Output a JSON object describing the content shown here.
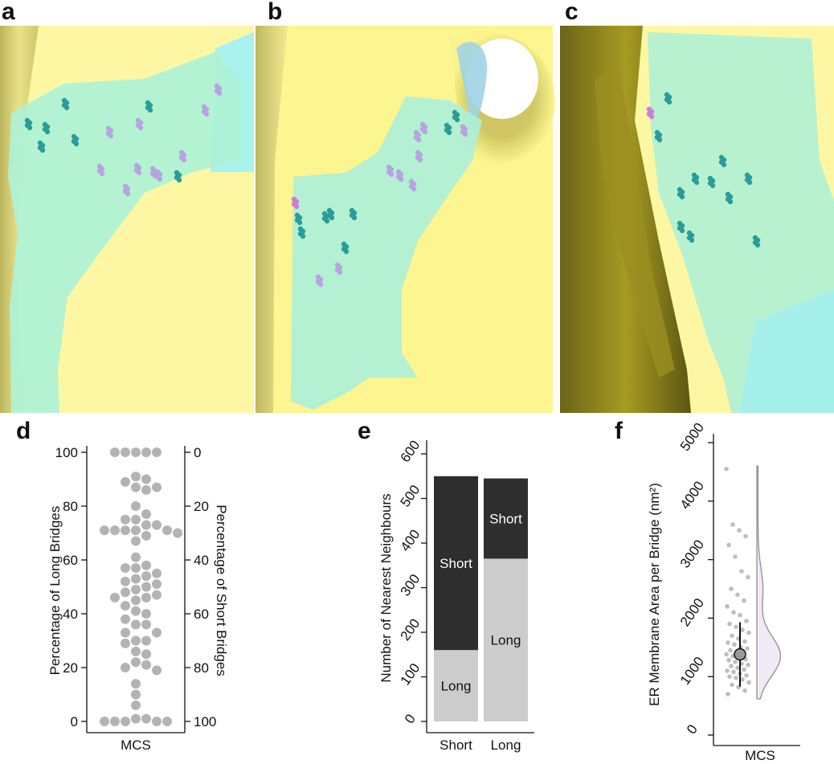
{
  "panels": {
    "a": "a",
    "b": "b",
    "c": "c",
    "d": "d",
    "e": "e",
    "f": "f"
  },
  "colors": {
    "yellow_membrane": "#fbf58e",
    "cyan_er": "#a6f0e6",
    "teal_bridge": "#2a9c9a",
    "lavender_bridge": "#b6a4e0",
    "dark_gray": "#2e2e2e",
    "light_gray": "#cccccc",
    "dot_gray": "#b3b3b3",
    "violin_fill": "#f1eaf6"
  },
  "chart_data": [
    {
      "type": "scatter",
      "panel": "d",
      "xlabel": "MCS",
      "ylabel": "Percentage of Long Bridges",
      "ylabel_right": "Percentage of Short Bridges",
      "ylim": [
        0,
        100
      ],
      "yticks": [
        "0",
        "20",
        "40",
        "60",
        "80",
        "100"
      ],
      "yticks_right": [
        "100",
        "80",
        "60",
        "40",
        "20",
        "0"
      ],
      "values": [
        100,
        100,
        100,
        100,
        100,
        91,
        90,
        89,
        87,
        87,
        86,
        80,
        77,
        75,
        75,
        73,
        73,
        71,
        71,
        71,
        71,
        71,
        70,
        69,
        67,
        61,
        58,
        57,
        57,
        55,
        54,
        53,
        52,
        51,
        50,
        49,
        48,
        47,
        46,
        46,
        45,
        43,
        41,
        40,
        38,
        36,
        36,
        33,
        33,
        30,
        30,
        29,
        26,
        25,
        22,
        21,
        20,
        19,
        14,
        10,
        6,
        1,
        1,
        0,
        0,
        0,
        0,
        0
      ]
    },
    {
      "type": "bar",
      "panel": "e",
      "stacked": true,
      "categories": [
        "Short",
        "Long"
      ],
      "ylabel": "Number of Nearest Neighbours",
      "ylim": [
        0,
        600
      ],
      "yticks": [
        "0",
        "100",
        "200",
        "300",
        "400",
        "500",
        "600"
      ],
      "series": [
        {
          "name": "Long",
          "values": [
            160,
            365
          ]
        },
        {
          "name": "Short",
          "values": [
            390,
            180
          ]
        }
      ]
    },
    {
      "type": "scatter",
      "panel": "f",
      "subtype": "violin",
      "xlabel": "MCS",
      "ylabel": "ER Membrane Area per Bridge (nm²)",
      "ylim": [
        0,
        5000
      ],
      "yticks": [
        "0",
        "1000",
        "2000",
        "3000",
        "4000",
        "5000"
      ],
      "mean": 1380,
      "error_range": [
        830,
        1930
      ],
      "values": [
        4550,
        3600,
        3500,
        3400,
        3250,
        3050,
        2800,
        2700,
        2500,
        2400,
        2300,
        2200,
        2100,
        2050,
        1950,
        1900,
        1850,
        1800,
        1750,
        1700,
        1650,
        1600,
        1580,
        1550,
        1500,
        1480,
        1450,
        1420,
        1400,
        1380,
        1350,
        1320,
        1300,
        1280,
        1250,
        1220,
        1200,
        1180,
        1150,
        1120,
        1100,
        1080,
        1050,
        1020,
        1000,
        980,
        950,
        900,
        860,
        820,
        760,
        700
      ]
    }
  ]
}
